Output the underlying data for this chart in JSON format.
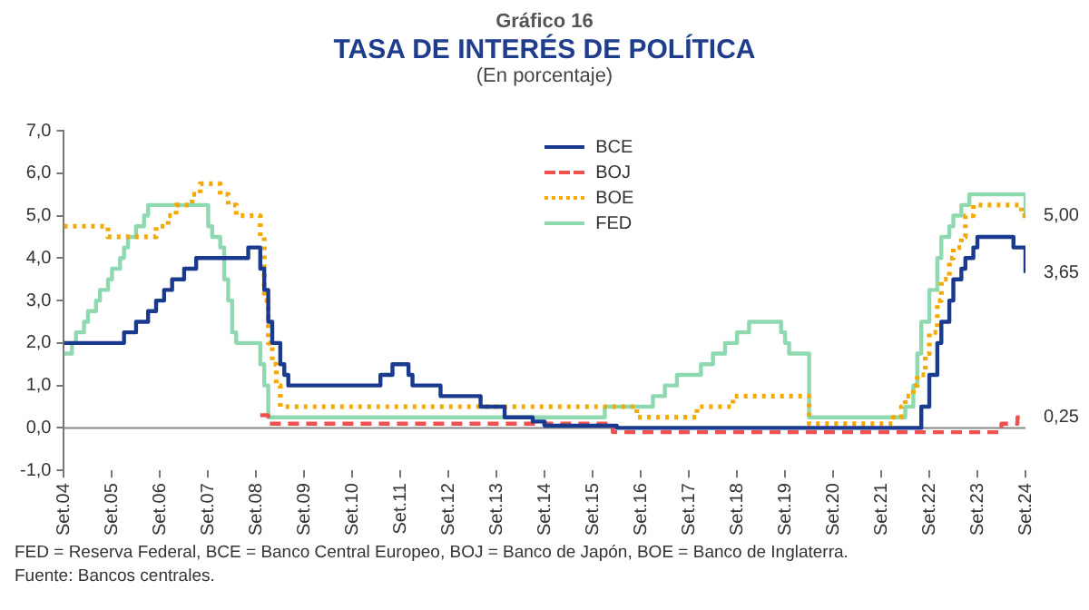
{
  "chart_data": {
    "type": "step",
    "ref_lines": [
      {
        "axis": "y",
        "value": 0,
        "color": "#888888"
      }
    ],
    "title": "TASA DE INTERÉS DE POLÍTICA",
    "subtitle": "(En porcentaje)",
    "annotations": [
      "Gráfico 16",
      "FED = Reserva Federal, BCE = Banco Central Europeo, BOJ = Banco de Japón, BOE = Banco de Inglaterra.",
      "Fuente: Bancos centrales.",
      {
        "text": "5,00",
        "x": "2024-09",
        "y": 5.0
      },
      {
        "text": "3,65",
        "x": "2024-09",
        "y": 3.65
      },
      {
        "text": "0,25",
        "x": "2024-09",
        "y": 0.25
      }
    ],
    "ylim": [
      -1,
      7
    ],
    "yticks": [
      {
        "value": -1,
        "label": "-1,0"
      },
      {
        "value": 0,
        "label": "0,0"
      },
      {
        "value": 1,
        "label": "1,0"
      },
      {
        "value": 2,
        "label": "2,0"
      },
      {
        "value": 3,
        "label": "3,0"
      },
      {
        "value": 4,
        "label": "4,0"
      },
      {
        "value": 5,
        "label": "5,0"
      },
      {
        "value": 6,
        "label": "6,0"
      },
      {
        "value": 7,
        "label": "7,0"
      }
    ],
    "xlim": [
      "2004-09",
      "2024-09"
    ],
    "xticks": [
      {
        "value": "2004-09",
        "label": "Set.04"
      },
      {
        "value": "2005-09",
        "label": "Set.05"
      },
      {
        "value": "2006-09",
        "label": "Set.06"
      },
      {
        "value": "2007-09",
        "label": "Set.07"
      },
      {
        "value": "2008-09",
        "label": "Set.08"
      },
      {
        "value": "2009-09",
        "label": "Set.09"
      },
      {
        "value": "2010-09",
        "label": "Set.10"
      },
      {
        "value": "2011-09",
        "label": "Set.11"
      },
      {
        "value": "2012-09",
        "label": "Set.12"
      },
      {
        "value": "2013-09",
        "label": "Set.13"
      },
      {
        "value": "2014-09",
        "label": "Set.14"
      },
      {
        "value": "2015-09",
        "label": "Set.15"
      },
      {
        "value": "2016-09",
        "label": "Set.16"
      },
      {
        "value": "2017-09",
        "label": "Set.17"
      },
      {
        "value": "2018-09",
        "label": "Set.18"
      },
      {
        "value": "2019-09",
        "label": "Set.19"
      },
      {
        "value": "2020-09",
        "label": "Set.20"
      },
      {
        "value": "2021-09",
        "label": "Set.21"
      },
      {
        "value": "2022-09",
        "label": "Set.22"
      },
      {
        "value": "2023-09",
        "label": "Set.23"
      },
      {
        "value": "2024-09",
        "label": "Set.24"
      }
    ],
    "legend": "top",
    "grid": false,
    "marker": "none",
    "series": [
      {
        "name": "BCE",
        "color": "#1a3a8f",
        "line_style": "solid",
        "x": [
          "2004-09",
          "2005-12",
          "2006-03",
          "2006-06",
          "2006-08",
          "2006-10",
          "2006-12",
          "2007-03",
          "2007-06",
          "2008-07",
          "2008-10",
          "2008-11",
          "2008-12",
          "2009-01",
          "2009-03",
          "2009-04",
          "2009-05",
          "2011-04",
          "2011-07",
          "2011-11",
          "2011-12",
          "2012-07",
          "2013-05",
          "2013-11",
          "2014-06",
          "2014-09",
          "2016-03",
          "2022-07",
          "2022-09",
          "2022-11",
          "2022-12",
          "2023-02",
          "2023-03",
          "2023-05",
          "2023-06",
          "2023-08",
          "2023-09",
          "2024-06",
          "2024-09"
        ],
        "values": [
          2.0,
          2.25,
          2.5,
          2.75,
          3.0,
          3.25,
          3.5,
          3.75,
          4.0,
          4.25,
          3.75,
          3.25,
          2.5,
          2.0,
          1.5,
          1.25,
          1.0,
          1.25,
          1.5,
          1.25,
          1.0,
          0.75,
          0.5,
          0.25,
          0.15,
          0.05,
          0.0,
          0.5,
          1.25,
          2.0,
          2.5,
          3.0,
          3.5,
          3.75,
          4.0,
          4.25,
          4.5,
          4.25,
          3.65
        ]
      },
      {
        "name": "BOJ",
        "color": "#f0504f",
        "line_style": "dashed",
        "x": [
          "2008-10",
          "2008-12",
          "2016-02",
          "2024-03",
          "2024-07",
          "2024-09"
        ],
        "values": [
          0.3,
          0.1,
          -0.1,
          0.1,
          0.25,
          0.25
        ]
      },
      {
        "name": "BOE",
        "color": "#f5a800",
        "line_style": "dotted",
        "x": [
          "2004-09",
          "2005-08",
          "2006-08",
          "2006-11",
          "2007-01",
          "2007-05",
          "2007-07",
          "2007-12",
          "2008-02",
          "2008-04",
          "2008-10",
          "2008-11",
          "2008-12",
          "2009-01",
          "2009-02",
          "2009-03",
          "2016-08",
          "2017-11",
          "2018-08",
          "2020-03",
          "2021-12",
          "2022-02",
          "2022-03",
          "2022-05",
          "2022-06",
          "2022-08",
          "2022-09",
          "2022-11",
          "2022-12",
          "2023-02",
          "2023-03",
          "2023-05",
          "2023-06",
          "2023-08",
          "2024-08",
          "2024-09"
        ],
        "values": [
          4.75,
          4.5,
          4.75,
          5.0,
          5.25,
          5.5,
          5.75,
          5.5,
          5.25,
          5.0,
          4.5,
          3.0,
          2.0,
          1.5,
          1.0,
          0.5,
          0.25,
          0.5,
          0.75,
          0.1,
          0.25,
          0.5,
          0.75,
          1.0,
          1.25,
          1.75,
          2.25,
          3.0,
          3.5,
          4.0,
          4.25,
          4.5,
          5.0,
          5.25,
          5.0,
          5.0
        ]
      },
      {
        "name": "FED",
        "color": "#8fd9b0",
        "line_style": "solid",
        "x": [
          "2004-09",
          "2004-11",
          "2004-12",
          "2005-02",
          "2005-03",
          "2005-05",
          "2005-06",
          "2005-08",
          "2005-09",
          "2005-11",
          "2005-12",
          "2006-01",
          "2006-03",
          "2006-05",
          "2006-06",
          "2007-09",
          "2007-10",
          "2007-12",
          "2008-01",
          "2008-02",
          "2008-03",
          "2008-04",
          "2008-10",
          "2008-11",
          "2008-12",
          "2015-12",
          "2016-12",
          "2017-03",
          "2017-06",
          "2017-12",
          "2018-03",
          "2018-06",
          "2018-09",
          "2018-12",
          "2019-08",
          "2019-09",
          "2019-10",
          "2020-03",
          "2022-03",
          "2022-05",
          "2022-06",
          "2022-07",
          "2022-09",
          "2022-11",
          "2022-12",
          "2023-02",
          "2023-03",
          "2023-05",
          "2023-07",
          "2024-09"
        ],
        "values": [
          1.75,
          2.0,
          2.25,
          2.5,
          2.75,
          3.0,
          3.25,
          3.5,
          3.75,
          4.0,
          4.25,
          4.5,
          4.75,
          5.0,
          5.25,
          4.75,
          4.5,
          4.25,
          3.5,
          3.0,
          2.25,
          2.0,
          1.5,
          1.0,
          0.25,
          0.5,
          0.75,
          1.0,
          1.25,
          1.5,
          1.75,
          2.0,
          2.25,
          2.5,
          2.25,
          2.0,
          1.75,
          0.25,
          0.5,
          1.0,
          1.75,
          2.5,
          3.25,
          4.0,
          4.5,
          4.75,
          5.0,
          5.25,
          5.5,
          5.0
        ]
      }
    ]
  }
}
